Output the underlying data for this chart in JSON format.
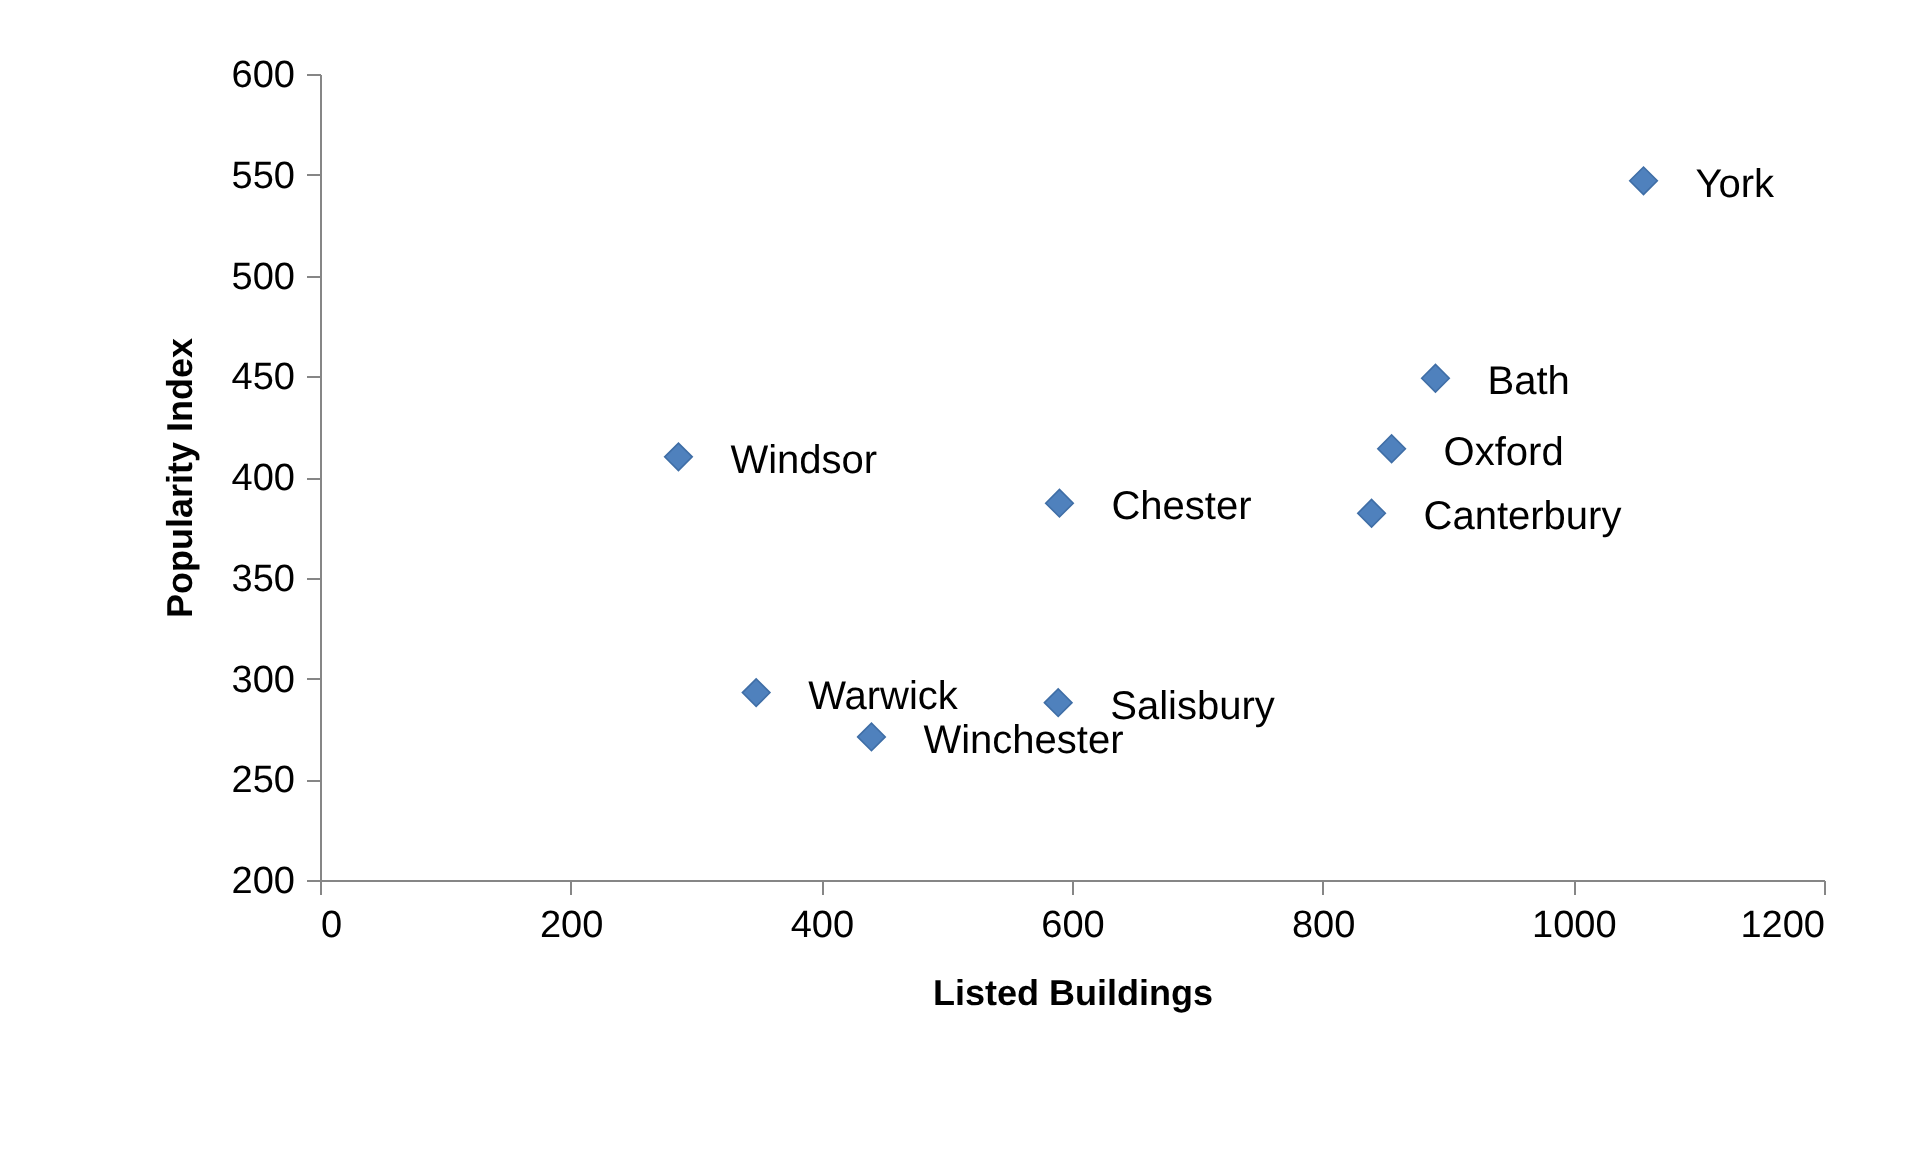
{
  "chart_data": {
    "type": "scatter",
    "xlabel": "Listed Buildings",
    "ylabel": "Popularity Index",
    "x": [
      1056,
      890,
      855,
      839,
      590,
      286,
      348,
      589,
      440
    ],
    "series": [
      {
        "color": "#4f81bd",
        "values": [
          547,
          449,
          414,
          382,
          387,
          410,
          293,
          288,
          271
        ]
      }
    ],
    "annotations": [
      {
        "text": "York",
        "x": 1056,
        "y": 547
      },
      {
        "text": "Bath",
        "x": 890,
        "y": 449
      },
      {
        "text": "Oxford",
        "x": 855,
        "y": 414
      },
      {
        "text": "Canterbury",
        "x": 839,
        "y": 382
      },
      {
        "text": "Chester",
        "x": 590,
        "y": 387
      },
      {
        "text": "Windsor",
        "x": 286,
        "y": 410
      },
      {
        "text": "Warwick",
        "x": 348,
        "y": 293
      },
      {
        "text": "Salisbury",
        "x": 589,
        "y": 288
      },
      {
        "text": "Winchester",
        "x": 440,
        "y": 271
      }
    ],
    "xlim": [
      0,
      1200
    ],
    "xticks": [
      0,
      200,
      400,
      600,
      800,
      1000,
      1200
    ],
    "ylim": [
      200,
      600
    ],
    "yticks": [
      200,
      250,
      300,
      350,
      400,
      450,
      500,
      550,
      600
    ],
    "marker": "diamond",
    "grid": false
  }
}
